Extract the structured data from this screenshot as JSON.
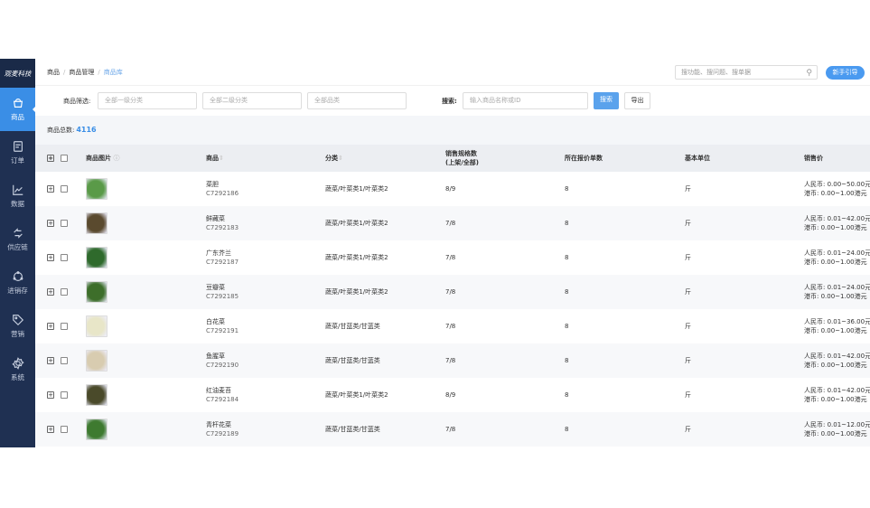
{
  "sidebar": {
    "logo": "观麦科技",
    "items": [
      {
        "label": "商品",
        "icon": "basket-icon",
        "active": true
      },
      {
        "label": "订单",
        "icon": "document-icon"
      },
      {
        "label": "数据",
        "icon": "chart-icon"
      },
      {
        "label": "供应链",
        "icon": "exchange-icon"
      },
      {
        "label": "进销存",
        "icon": "cycle-icon"
      },
      {
        "label": "营销",
        "icon": "tag-icon"
      },
      {
        "label": "系统",
        "icon": "gear-icon"
      }
    ]
  },
  "header": {
    "breadcrumb": [
      "商品",
      "商品管理",
      "商品库"
    ],
    "search_placeholder": "搜功能、搜问题、搜单据",
    "guide_label": "新手引导"
  },
  "filter": {
    "label": "商品筛选:",
    "cat1": "全部一级分类",
    "cat2": "全部二级分类",
    "pinlei": "全部品类",
    "search_label": "搜索:",
    "search_placeholder": "输入商品名称或ID",
    "search_btn": "搜索",
    "export_btn": "导出"
  },
  "summary": {
    "label": "商品总数:",
    "count": "4116"
  },
  "table": {
    "headers": {
      "image": "商品图片",
      "product": "商品",
      "category": "分类",
      "spec1": "销售规格数",
      "spec2": "(上架/全部)",
      "quote": "所在报价单数",
      "unit": "基本单位",
      "price": "销售价"
    },
    "rows": [
      {
        "name": "菜胆",
        "id": "C7292186",
        "category": "蔬菜/叶菜类1/叶菜类2",
        "spec": "8/9",
        "quote": "8",
        "unit": "斤",
        "rmb": "人民币: 0.00~50.00元",
        "hkd": "港币: 0.00~1.00港元",
        "color": "#5a9a48"
      },
      {
        "name": "鲜藏菜",
        "id": "C7292183",
        "category": "蔬菜/叶菜类1/叶菜类2",
        "spec": "7/8",
        "quote": "8",
        "unit": "斤",
        "rmb": "人民币: 0.01~42.00元",
        "hkd": "港币: 0.00~1.00港元",
        "color": "#5a4a2e"
      },
      {
        "name": "广东芥兰",
        "id": "C7292187",
        "category": "蔬菜/叶菜类1/叶菜类2",
        "spec": "7/8",
        "quote": "8",
        "unit": "斤",
        "rmb": "人民币: 0.01~24.00元",
        "hkd": "港币: 0.00~1.00港元",
        "color": "#2f6a2c"
      },
      {
        "name": "豆瓣菜",
        "id": "C7292185",
        "category": "蔬菜/叶菜类1/叶菜类2",
        "spec": "7/8",
        "quote": "8",
        "unit": "斤",
        "rmb": "人民币: 0.01~24.00元",
        "hkd": "港币: 0.00~1.00港元",
        "color": "#3d6e2a"
      },
      {
        "name": "白花菜",
        "id": "C7292191",
        "category": "蔬菜/甘蓝类/甘蓝类",
        "spec": "7/8",
        "quote": "8",
        "unit": "斤",
        "rmb": "人民币: 0.01~36.00元",
        "hkd": "港币: 0.00~1.00港元",
        "color": "#e8e6c8"
      },
      {
        "name": "鱼腥草",
        "id": "C7292190",
        "category": "蔬菜/甘蓝类/甘蓝类",
        "spec": "7/8",
        "quote": "8",
        "unit": "斤",
        "rmb": "人民币: 0.01~42.00元",
        "hkd": "港币: 0.00~1.00港元",
        "color": "#d8ccb0"
      },
      {
        "name": "红油麦苔",
        "id": "C7292184",
        "category": "蔬菜/叶菜类1/叶菜类2",
        "spec": "8/9",
        "quote": "8",
        "unit": "斤",
        "rmb": "人民币: 0.01~42.00元",
        "hkd": "港币: 0.00~1.00港元",
        "color": "#4a4a2a"
      },
      {
        "name": "青杆花菜",
        "id": "C7292189",
        "category": "蔬菜/甘蓝类/甘蓝类",
        "spec": "7/8",
        "quote": "8",
        "unit": "斤",
        "rmb": "人民币: 0.01~12.00元",
        "hkd": "港币: 0.00~1.00港元",
        "color": "#3e7a30"
      }
    ]
  }
}
